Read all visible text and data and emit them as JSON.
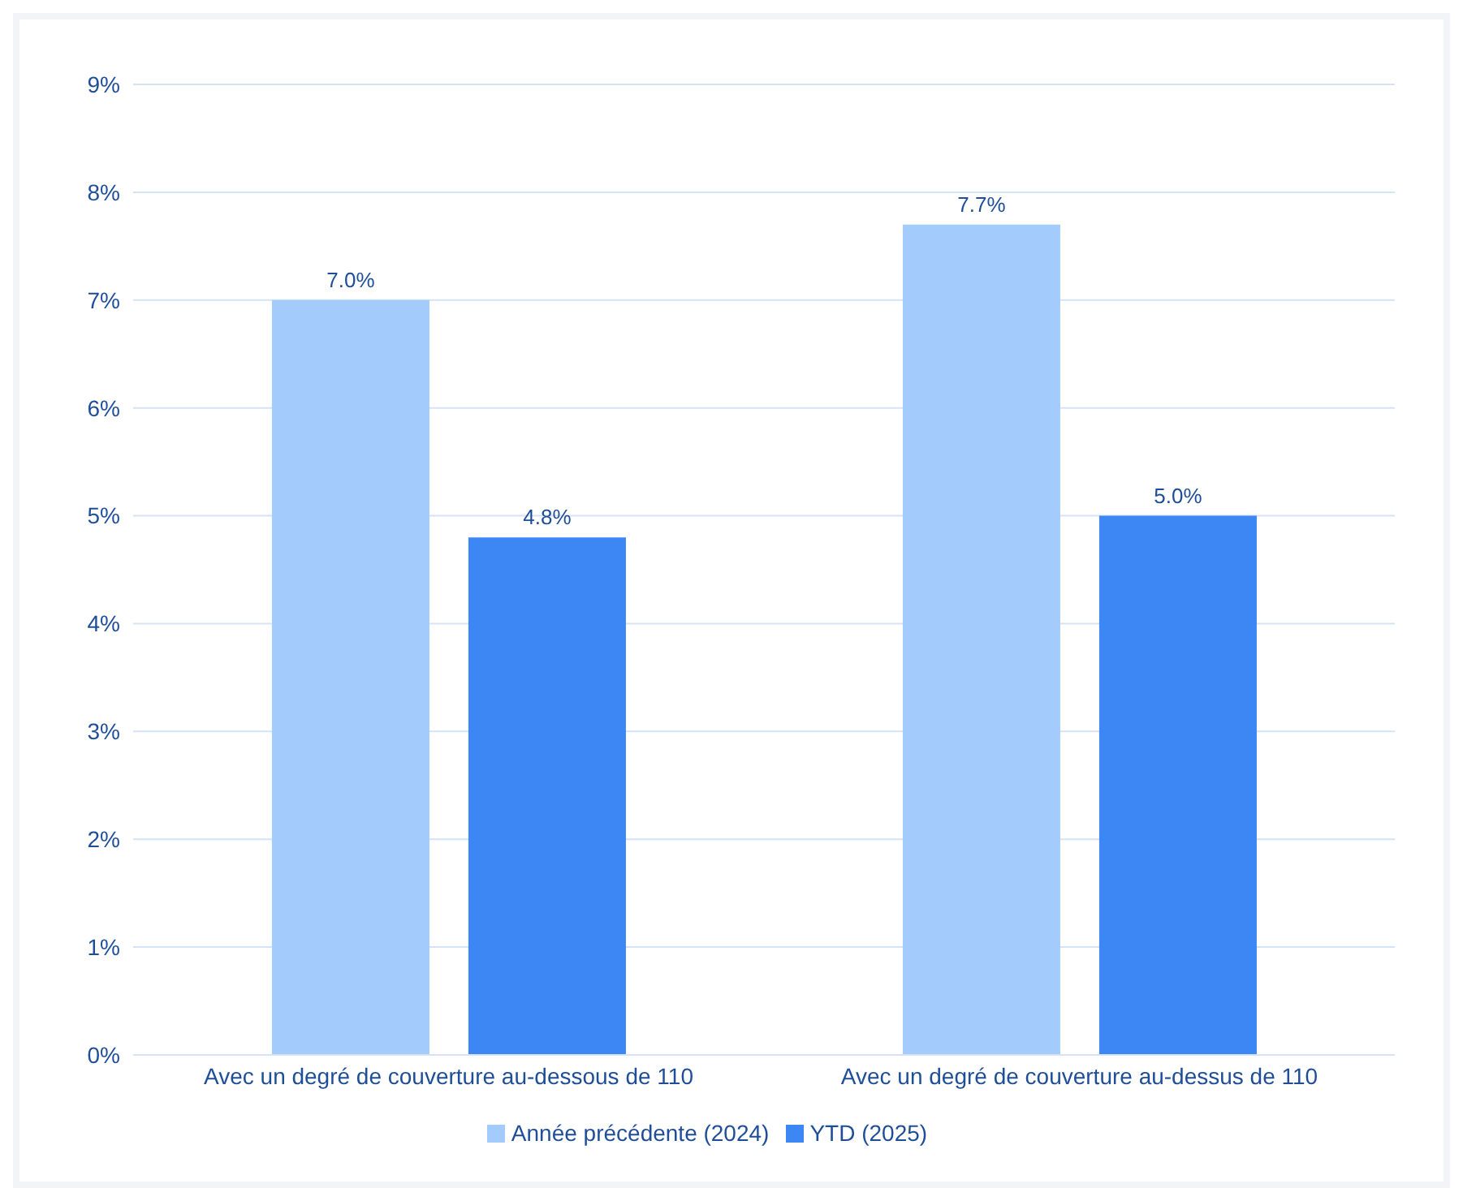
{
  "chart_data": {
    "type": "bar",
    "categories": [
      "Avec un degré de couverture au-dessous de 110",
      "Avec un degré de couverture au-dessus de 110"
    ],
    "series": [
      {
        "name": "Année précédente (2024)",
        "color": "#a3cbfc",
        "values": [
          7.0,
          7.7
        ],
        "value_labels": [
          "7.0%",
          "7.7%"
        ]
      },
      {
        "name": "YTD (2025)",
        "color": "#3d87f5",
        "values": [
          4.8,
          5.0
        ],
        "value_labels": [
          "4.8%",
          "5.0%"
        ]
      }
    ],
    "ylim": [
      0,
      9
    ],
    "yticks": [
      {
        "value": 0,
        "label": "0%"
      },
      {
        "value": 1,
        "label": "1%"
      },
      {
        "value": 2,
        "label": "2%"
      },
      {
        "value": 3,
        "label": "3%"
      },
      {
        "value": 4,
        "label": "4%"
      },
      {
        "value": 5,
        "label": "5%"
      },
      {
        "value": 6,
        "label": "6%"
      },
      {
        "value": 7,
        "label": "7%"
      },
      {
        "value": 8,
        "label": "8%"
      },
      {
        "value": 9,
        "label": "9%"
      }
    ],
    "grid": "y",
    "legend": "bottom"
  }
}
